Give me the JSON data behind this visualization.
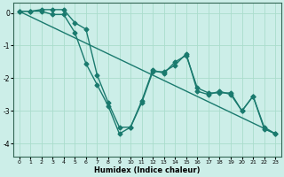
{
  "xlabel": "Humidex (Indice chaleur)",
  "ylabel": "",
  "background_color": "#cceee8",
  "grid_color": "#aaddcc",
  "line_color": "#1a7a6e",
  "marker": "D",
  "markersize": 2.5,
  "linewidth": 1.0,
  "xlim": [
    -0.5,
    23.5
  ],
  "ylim": [
    -4.4,
    0.3
  ],
  "yticks": [
    0,
    -1,
    -2,
    -3,
    -4
  ],
  "xticks": [
    0,
    1,
    2,
    3,
    4,
    5,
    6,
    7,
    8,
    9,
    10,
    11,
    12,
    13,
    14,
    15,
    16,
    17,
    18,
    19,
    20,
    21,
    22,
    23
  ],
  "line1_x": [
    0,
    1,
    2,
    3,
    4,
    5,
    6,
    7,
    8,
    9,
    10,
    11,
    12,
    13,
    14,
    15,
    16,
    17,
    18,
    19,
    20,
    21,
    22,
    23
  ],
  "line1_y": [
    0.05,
    0.05,
    0.1,
    0.1,
    0.1,
    -0.3,
    -0.5,
    -1.9,
    -2.75,
    -3.5,
    -3.5,
    -2.7,
    -1.75,
    -1.85,
    -1.5,
    -1.3,
    -2.3,
    -2.45,
    -2.45,
    -2.45,
    -3.0,
    -2.55,
    -3.5,
    -3.7
  ],
  "line2_x": [
    0,
    1,
    2,
    3,
    4,
    5,
    6,
    7,
    8,
    9,
    10,
    11,
    12,
    13,
    14,
    15,
    16,
    17,
    18,
    19,
    20,
    21,
    22,
    23
  ],
  "line2_y": [
    0.05,
    0.05,
    0.05,
    -0.05,
    -0.05,
    -0.6,
    -1.55,
    -2.2,
    -2.85,
    -3.7,
    -3.5,
    -2.75,
    -1.8,
    -1.8,
    -1.6,
    -1.25,
    -2.4,
    -2.5,
    -2.4,
    -2.5,
    -3.0,
    -2.55,
    -3.55,
    -3.7
  ],
  "line3_x": [
    0,
    23
  ],
  "line3_y": [
    0.05,
    -3.7
  ]
}
